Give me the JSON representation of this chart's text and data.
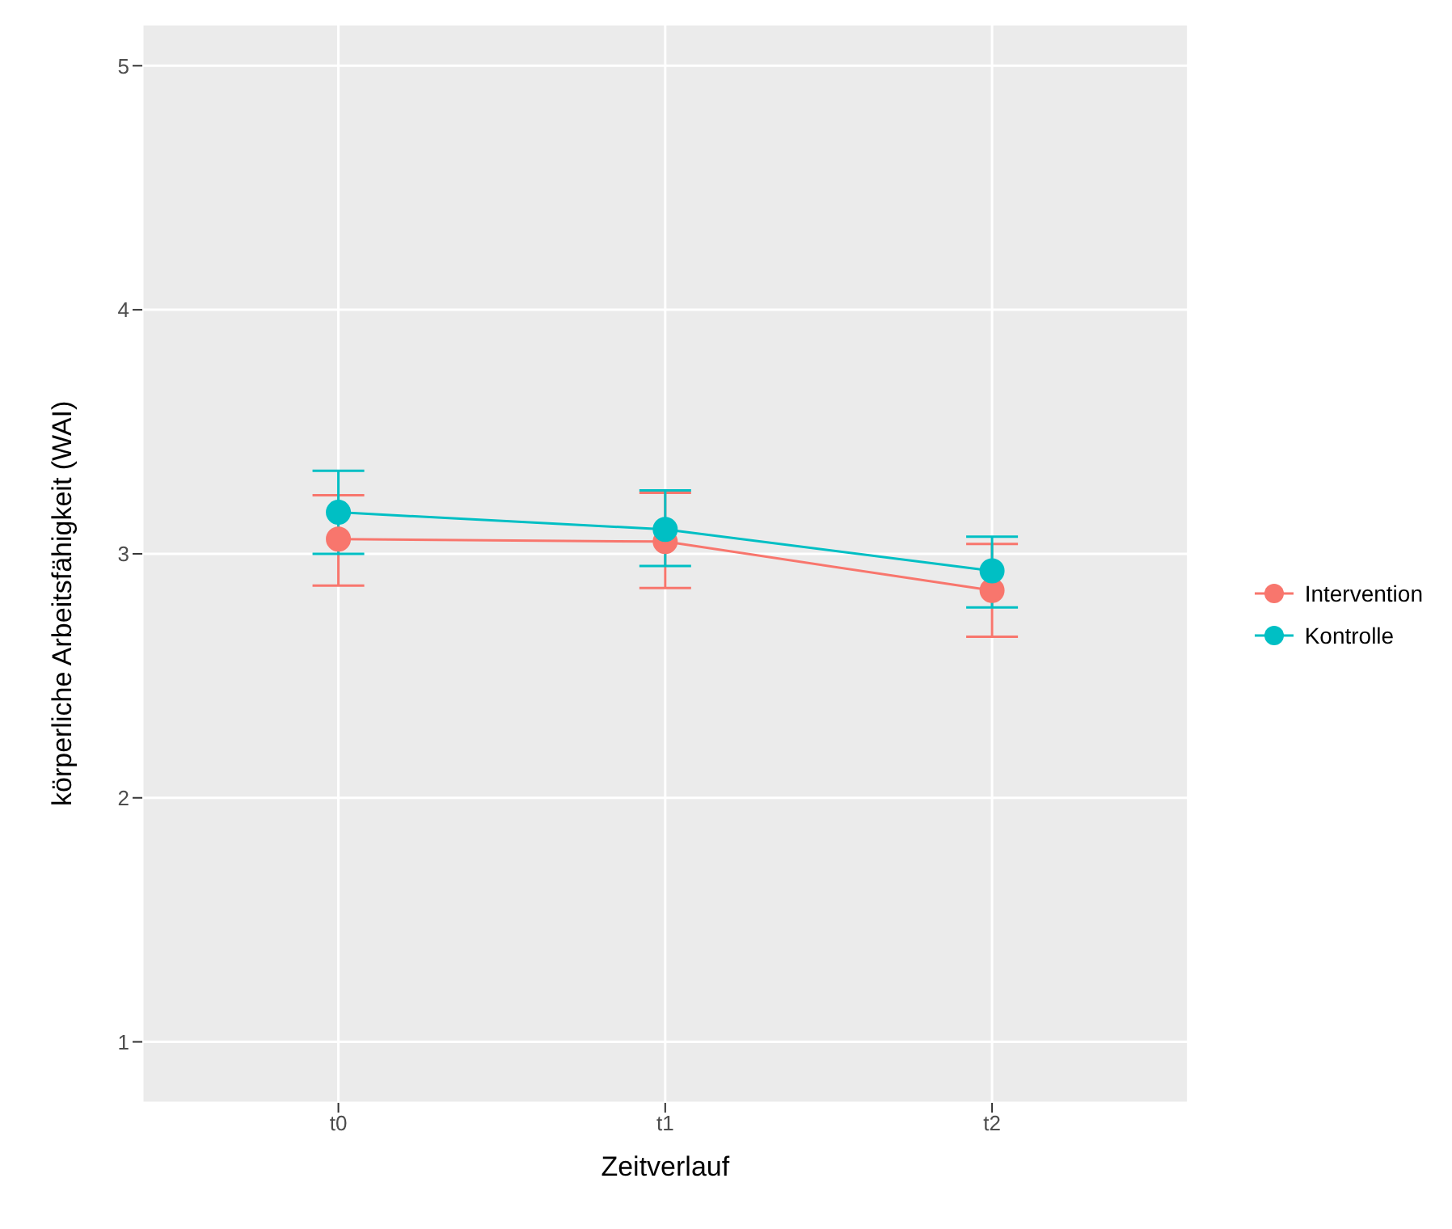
{
  "chart_data": {
    "type": "line",
    "xlabel": "Zeitverlauf",
    "ylabel": "körperliche Arbeitsfähigkeit (WAI)",
    "categories": [
      "t0",
      "t1",
      "t2"
    ],
    "series": [
      {
        "name": "Intervention",
        "color": "#f8766d",
        "values": [
          3.06,
          3.05,
          2.85
        ],
        "errors": [
          [
            2.87,
            3.24
          ],
          [
            2.86,
            3.25
          ],
          [
            2.66,
            3.04
          ]
        ]
      },
      {
        "name": "Kontrolle",
        "color": "#00bfc4",
        "values": [
          3.17,
          3.1,
          2.93
        ],
        "errors": [
          [
            3.0,
            3.34
          ],
          [
            2.95,
            3.26
          ],
          [
            2.78,
            3.07
          ]
        ]
      }
    ],
    "ylim": [
      0.75,
      5.17
    ],
    "yticks": [
      1,
      2,
      3,
      4,
      5
    ],
    "grid": true,
    "legend": "right",
    "marker": "circle",
    "line_style": "solid"
  }
}
